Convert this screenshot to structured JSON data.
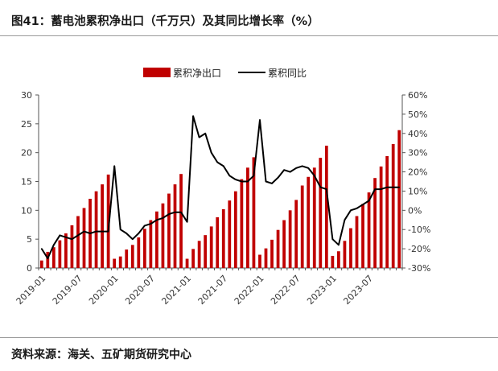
{
  "figure": {
    "title": "图41：蓄电池累积净出口（千万只）及其同比增长率（%）",
    "source": "资料来源：海关、五矿期货研究中心"
  },
  "colors": {
    "bar": "#C00000",
    "line": "#000000",
    "axis": "#555555",
    "rule": "#9a9a9a"
  },
  "chart_data": {
    "type": "bar+line",
    "title": "蓄电池累积净出口（千万只）及其同比增长率（%）",
    "legend": [
      "累积净出口",
      "累积同比"
    ],
    "legend_position": "top-center",
    "y_left": {
      "min": 0,
      "max": 30,
      "ticks": [
        0,
        5,
        10,
        15,
        20,
        25,
        30
      ]
    },
    "y_right": {
      "min": -30,
      "max": 60,
      "ticks": [
        -30,
        -20,
        -10,
        0,
        10,
        20,
        30,
        40,
        50,
        60
      ],
      "tick_labels": [
        "-30%",
        "-20%",
        "-10%",
        "0%",
        "10%",
        "20%",
        "30%",
        "40%",
        "50%",
        "60%"
      ]
    },
    "x_tick_labels": [
      "2019-01",
      "2019-07",
      "2020-01",
      "2020-07",
      "2021-01",
      "2021-07",
      "2022-01",
      "2022-07",
      "2023-01",
      "2023-07"
    ],
    "x_tick_every": 6,
    "categories": [
      "2019-01",
      "2019-02",
      "2019-03",
      "2019-04",
      "2019-05",
      "2019-06",
      "2019-07",
      "2019-08",
      "2019-09",
      "2019-10",
      "2019-11",
      "2019-12",
      "2020-01",
      "2020-02",
      "2020-03",
      "2020-04",
      "2020-05",
      "2020-06",
      "2020-07",
      "2020-08",
      "2020-09",
      "2020-10",
      "2020-11",
      "2020-12",
      "2021-01",
      "2021-02",
      "2021-03",
      "2021-04",
      "2021-05",
      "2021-06",
      "2021-07",
      "2021-08",
      "2021-09",
      "2021-10",
      "2021-11",
      "2021-12",
      "2022-01",
      "2022-02",
      "2022-03",
      "2022-04",
      "2022-05",
      "2022-06",
      "2022-07",
      "2022-08",
      "2022-09",
      "2022-10",
      "2022-11",
      "2022-12",
      "2023-01",
      "2023-02",
      "2023-03",
      "2023-04",
      "2023-05",
      "2023-06",
      "2023-07",
      "2023-08",
      "2023-09",
      "2023-10",
      "2023-11",
      "2023-12"
    ],
    "series": [
      {
        "name": "累积净出口",
        "type": "bar",
        "axis": "left",
        "values": [
          1.3,
          2.8,
          3.6,
          4.8,
          6.0,
          7.4,
          9.0,
          10.4,
          12.0,
          13.3,
          14.5,
          16.2,
          1.6,
          2.0,
          3.2,
          4.0,
          5.3,
          6.8,
          8.3,
          9.8,
          11.2,
          12.9,
          14.5,
          16.3,
          1.6,
          3.3,
          4.7,
          5.7,
          7.2,
          8.8,
          10.2,
          11.7,
          13.3,
          15.4,
          17.4,
          19.2,
          2.3,
          3.4,
          4.9,
          6.6,
          8.3,
          10.0,
          11.8,
          14.3,
          15.8,
          17.4,
          19.1,
          21.2,
          2.1,
          2.9,
          4.7,
          6.9,
          9.0,
          11.1,
          13.1,
          15.6,
          17.6,
          19.4,
          21.5,
          23.9
        ]
      },
      {
        "name": "累积同比",
        "type": "line",
        "axis": "right",
        "values": [
          -20,
          -25,
          -18,
          -13,
          -14,
          -15,
          -13,
          -11,
          -12,
          -11,
          -11,
          -11,
          23,
          -10,
          -12,
          -15,
          -12,
          -8,
          -7,
          -5,
          -4,
          -2,
          -1,
          -1,
          -6,
          49,
          38,
          40,
          30,
          25,
          23,
          18,
          16,
          15,
          15,
          18,
          47,
          15,
          14,
          17,
          21,
          20,
          22,
          23,
          22,
          18,
          12,
          11,
          -15,
          -18,
          -5,
          0,
          1,
          3,
          5,
          11,
          11,
          12,
          12,
          12
        ]
      }
    ]
  }
}
